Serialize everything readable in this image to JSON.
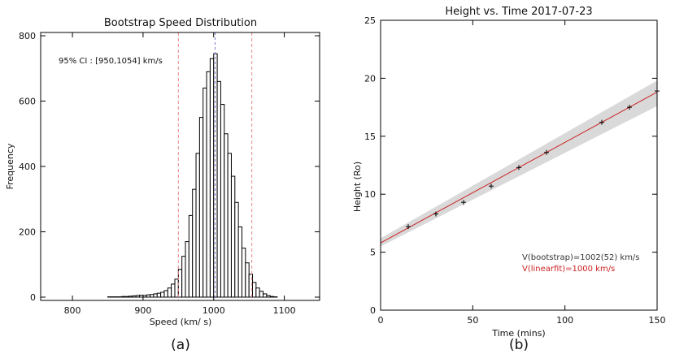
{
  "chart_data": [
    {
      "type": "bar",
      "title": "Bootstrap Speed Distribution",
      "xlabel": "Speed (km/ s)",
      "ylabel": "Frequency",
      "xlim": [
        755,
        1150
      ],
      "ylim": [
        -10,
        810
      ],
      "xticks": [
        800,
        900,
        1000,
        1100
      ],
      "yticks": [
        0,
        200,
        400,
        600,
        800
      ],
      "bin_width": 5,
      "bins": [
        [
          850,
          1
        ],
        [
          855,
          1
        ],
        [
          860,
          1
        ],
        [
          865,
          1
        ],
        [
          870,
          2
        ],
        [
          875,
          2
        ],
        [
          880,
          3
        ],
        [
          885,
          4
        ],
        [
          890,
          5
        ],
        [
          895,
          6
        ],
        [
          900,
          5
        ],
        [
          905,
          7
        ],
        [
          910,
          8
        ],
        [
          915,
          10
        ],
        [
          920,
          12
        ],
        [
          925,
          15
        ],
        [
          930,
          20
        ],
        [
          935,
          28
        ],
        [
          940,
          40
        ],
        [
          945,
          55
        ],
        [
          950,
          85
        ],
        [
          955,
          125
        ],
        [
          960,
          170
        ],
        [
          965,
          250
        ],
        [
          970,
          330
        ],
        [
          975,
          440
        ],
        [
          980,
          550
        ],
        [
          985,
          640
        ],
        [
          990,
          690
        ],
        [
          995,
          730
        ],
        [
          1000,
          745
        ],
        [
          1005,
          660
        ],
        [
          1010,
          590
        ],
        [
          1015,
          500
        ],
        [
          1020,
          440
        ],
        [
          1025,
          370
        ],
        [
          1030,
          290
        ],
        [
          1035,
          215
        ],
        [
          1040,
          150
        ],
        [
          1045,
          105
        ],
        [
          1050,
          70
        ],
        [
          1055,
          45
        ],
        [
          1060,
          28
        ],
        [
          1065,
          18
        ],
        [
          1070,
          10
        ],
        [
          1075,
          5
        ],
        [
          1080,
          2
        ],
        [
          1085,
          1
        ]
      ],
      "ci_lines": [
        950,
        1054
      ],
      "median_line": 1002,
      "annotation": "95% CI : [950,1054] km/s"
    },
    {
      "type": "scatter",
      "title": "Height vs. Time 2017-07-23",
      "xlabel": "Time (mins)",
      "ylabel": "Height (Ro)",
      "xlim": [
        0,
        150
      ],
      "ylim": [
        0,
        25
      ],
      "xticks": [
        0,
        50,
        100,
        150
      ],
      "yticks": [
        0,
        5,
        10,
        15,
        20,
        25
      ],
      "points": [
        {
          "x": 15,
          "y": 7.2
        },
        {
          "x": 30,
          "y": 8.3
        },
        {
          "x": 45,
          "y": 9.3
        },
        {
          "x": 60,
          "y": 10.7
        },
        {
          "x": 75,
          "y": 12.3
        },
        {
          "x": 90,
          "y": 13.6
        },
        {
          "x": 120,
          "y": 16.2
        },
        {
          "x": 135,
          "y": 17.5
        },
        {
          "x": 150,
          "y": 18.9
        }
      ],
      "fit_line": {
        "intercept": 5.8,
        "slope": 0.0867
      },
      "band": {
        "lower": [
          [
            0,
            5.5
          ],
          [
            150,
            17.6
          ]
        ],
        "upper": [
          [
            0,
            6.2
          ],
          [
            150,
            19.8
          ]
        ]
      },
      "fit_color": "#cc2222",
      "band_color": "#d9d9d9",
      "annotations": [
        {
          "text": "V(bootstrap)=1002(52) km/s",
          "color": "#333333"
        },
        {
          "text": "V(linearfit)=1000 km/s",
          "color": "#cc2222"
        }
      ]
    }
  ],
  "captions": {
    "left": "(a)",
    "right": "(b)"
  }
}
